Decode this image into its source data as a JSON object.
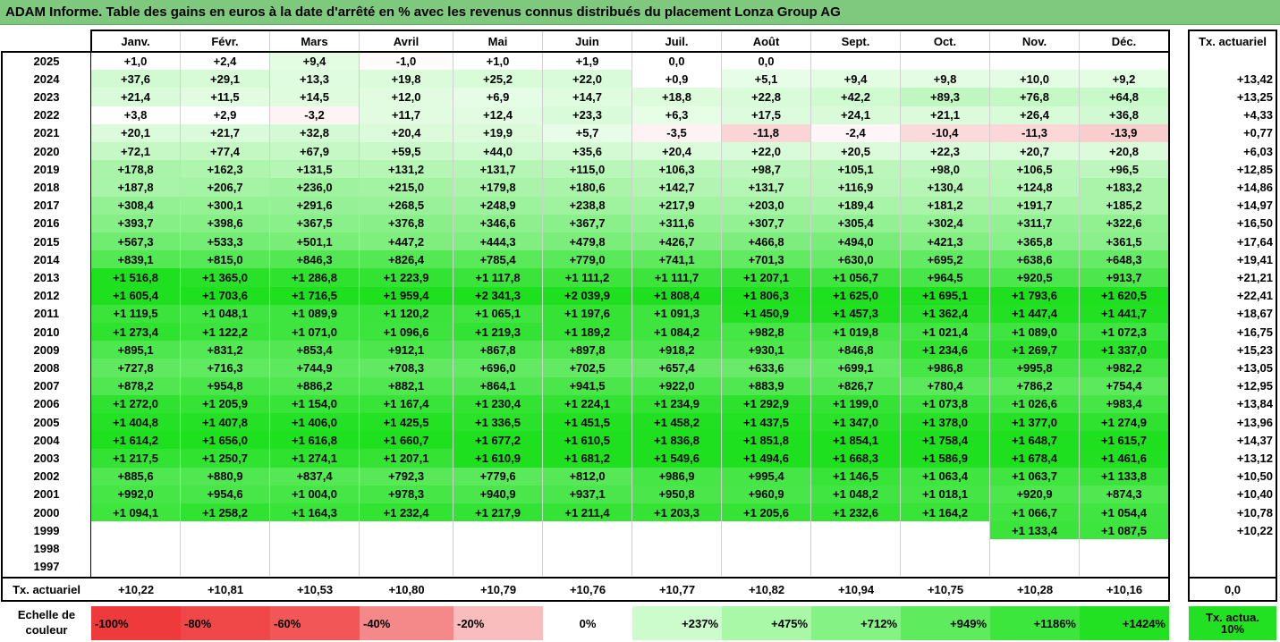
{
  "title": "ADAM Informe. Table des gains en euros à la date d'arrêté en % avec les revenus connus distribués du placement Lonza Group AG",
  "chart_data": {
    "type": "table",
    "columns": [
      "Janv.",
      "Févr.",
      "Mars",
      "Avril",
      "Mai",
      "Juin",
      "Juil.",
      "Août",
      "Sept.",
      "Oct.",
      "Nov.",
      "Déc."
    ],
    "summary_header": "Tx. actuariel",
    "rows": [
      {
        "year": "2025",
        "values": [
          "+1,0",
          "+2,4",
          "+9,4",
          "-1,0",
          "+1,0",
          "+1,9",
          "0,0",
          "0,0",
          "",
          "",
          "",
          ""
        ],
        "tx": ""
      },
      {
        "year": "2024",
        "values": [
          "+37,6",
          "+29,1",
          "+13,3",
          "+19,8",
          "+25,2",
          "+22,0",
          "+0,9",
          "+5,1",
          "+9,4",
          "+9,8",
          "+10,0",
          "+9,2"
        ],
        "tx": "+13,42"
      },
      {
        "year": "2023",
        "values": [
          "+21,4",
          "+11,5",
          "+14,5",
          "+12,0",
          "+6,9",
          "+14,7",
          "+18,8",
          "+22,8",
          "+42,2",
          "+89,3",
          "+76,8",
          "+64,8"
        ],
        "tx": "+13,25"
      },
      {
        "year": "2022",
        "values": [
          "+3,8",
          "+2,9",
          "-3,2",
          "+11,7",
          "+12,4",
          "+23,3",
          "+6,3",
          "+17,5",
          "+24,1",
          "+21,1",
          "+26,4",
          "+36,8"
        ],
        "tx": "+4,33"
      },
      {
        "year": "2021",
        "values": [
          "+20,1",
          "+21,7",
          "+32,8",
          "+20,4",
          "+19,9",
          "+5,7",
          "-3,5",
          "-11,8",
          "-2,4",
          "-10,4",
          "-11,3",
          "-13,9"
        ],
        "tx": "+0,77"
      },
      {
        "year": "2020",
        "values": [
          "+72,1",
          "+77,4",
          "+67,9",
          "+59,5",
          "+44,0",
          "+35,6",
          "+20,4",
          "+22,0",
          "+20,5",
          "+22,3",
          "+20,7",
          "+20,8"
        ],
        "tx": "+6,03"
      },
      {
        "year": "2019",
        "values": [
          "+178,8",
          "+162,3",
          "+131,5",
          "+131,2",
          "+131,7",
          "+115,0",
          "+106,3",
          "+98,7",
          "+105,1",
          "+98,0",
          "+106,5",
          "+96,5"
        ],
        "tx": "+12,85"
      },
      {
        "year": "2018",
        "values": [
          "+187,8",
          "+206,7",
          "+236,0",
          "+215,0",
          "+179,8",
          "+180,6",
          "+142,7",
          "+131,7",
          "+116,9",
          "+130,4",
          "+124,8",
          "+183,2"
        ],
        "tx": "+14,86"
      },
      {
        "year": "2017",
        "values": [
          "+308,4",
          "+300,1",
          "+291,6",
          "+268,5",
          "+248,9",
          "+238,8",
          "+217,9",
          "+203,0",
          "+189,4",
          "+181,2",
          "+191,7",
          "+185,2"
        ],
        "tx": "+14,97"
      },
      {
        "year": "2016",
        "values": [
          "+393,7",
          "+398,6",
          "+367,5",
          "+376,8",
          "+346,6",
          "+367,7",
          "+311,6",
          "+307,7",
          "+305,4",
          "+302,4",
          "+311,7",
          "+322,6"
        ],
        "tx": "+16,50"
      },
      {
        "year": "2015",
        "values": [
          "+567,3",
          "+533,3",
          "+501,1",
          "+447,2",
          "+444,3",
          "+479,8",
          "+426,7",
          "+466,8",
          "+494,0",
          "+421,3",
          "+365,8",
          "+361,5"
        ],
        "tx": "+17,64"
      },
      {
        "year": "2014",
        "values": [
          "+839,1",
          "+815,0",
          "+846,3",
          "+826,4",
          "+785,4",
          "+779,0",
          "+741,1",
          "+701,3",
          "+630,0",
          "+695,2",
          "+638,6",
          "+648,3"
        ],
        "tx": "+19,41"
      },
      {
        "year": "2013",
        "values": [
          "+1 516,8",
          "+1 365,0",
          "+1 286,8",
          "+1 223,9",
          "+1 117,8",
          "+1 111,2",
          "+1 111,7",
          "+1 207,1",
          "+1 056,7",
          "+964,5",
          "+920,5",
          "+913,7"
        ],
        "tx": "+21,21"
      },
      {
        "year": "2012",
        "values": [
          "+1 605,4",
          "+1 703,6",
          "+1 716,5",
          "+1 959,4",
          "+2 341,3",
          "+2 039,9",
          "+1 808,4",
          "+1 806,3",
          "+1 625,0",
          "+1 695,1",
          "+1 793,6",
          "+1 620,5"
        ],
        "tx": "+22,41"
      },
      {
        "year": "2011",
        "values": [
          "+1 119,5",
          "+1 048,1",
          "+1 089,9",
          "+1 120,2",
          "+1 065,1",
          "+1 197,6",
          "+1 091,3",
          "+1 450,9",
          "+1 457,3",
          "+1 362,4",
          "+1 447,4",
          "+1 441,7"
        ],
        "tx": "+18,67"
      },
      {
        "year": "2010",
        "values": [
          "+1 273,4",
          "+1 122,2",
          "+1 071,0",
          "+1 096,6",
          "+1 219,3",
          "+1 189,2",
          "+1 084,2",
          "+982,8",
          "+1 019,8",
          "+1 021,4",
          "+1 089,0",
          "+1 072,3"
        ],
        "tx": "+16,75"
      },
      {
        "year": "2009",
        "values": [
          "+895,1",
          "+831,2",
          "+853,4",
          "+912,1",
          "+867,8",
          "+897,8",
          "+918,2",
          "+930,1",
          "+846,8",
          "+1 234,6",
          "+1 269,7",
          "+1 337,0"
        ],
        "tx": "+15,23"
      },
      {
        "year": "2008",
        "values": [
          "+727,8",
          "+716,3",
          "+744,9",
          "+708,3",
          "+696,0",
          "+702,5",
          "+657,4",
          "+633,6",
          "+699,1",
          "+986,8",
          "+995,8",
          "+982,2"
        ],
        "tx": "+13,05"
      },
      {
        "year": "2007",
        "values": [
          "+878,2",
          "+954,8",
          "+886,2",
          "+882,1",
          "+864,1",
          "+941,5",
          "+922,0",
          "+883,9",
          "+826,7",
          "+780,4",
          "+786,2",
          "+754,4"
        ],
        "tx": "+12,95"
      },
      {
        "year": "2006",
        "values": [
          "+1 272,0",
          "+1 205,9",
          "+1 154,0",
          "+1 167,4",
          "+1 230,4",
          "+1 224,1",
          "+1 234,9",
          "+1 292,9",
          "+1 199,0",
          "+1 073,8",
          "+1 026,6",
          "+983,4"
        ],
        "tx": "+13,84"
      },
      {
        "year": "2005",
        "values": [
          "+1 404,8",
          "+1 407,8",
          "+1 406,0",
          "+1 425,5",
          "+1 336,5",
          "+1 451,5",
          "+1 458,2",
          "+1 437,5",
          "+1 347,0",
          "+1 378,0",
          "+1 377,0",
          "+1 274,9"
        ],
        "tx": "+13,96"
      },
      {
        "year": "2004",
        "values": [
          "+1 614,2",
          "+1 656,0",
          "+1 616,8",
          "+1 660,7",
          "+1 677,2",
          "+1 610,5",
          "+1 836,8",
          "+1 851,8",
          "+1 854,1",
          "+1 758,4",
          "+1 648,7",
          "+1 615,7"
        ],
        "tx": "+14,37"
      },
      {
        "year": "2003",
        "values": [
          "+1 217,5",
          "+1 250,7",
          "+1 274,1",
          "+1 207,1",
          "+1 610,9",
          "+1 681,2",
          "+1 549,6",
          "+1 494,6",
          "+1 668,3",
          "+1 586,9",
          "+1 678,4",
          "+1 461,6"
        ],
        "tx": "+13,12"
      },
      {
        "year": "2002",
        "values": [
          "+885,6",
          "+880,9",
          "+837,4",
          "+792,3",
          "+779,6",
          "+812,0",
          "+986,9",
          "+995,4",
          "+1 146,5",
          "+1 063,4",
          "+1 063,7",
          "+1 133,8"
        ],
        "tx": "+10,50"
      },
      {
        "year": "2001",
        "values": [
          "+992,0",
          "+954,6",
          "+1 004,0",
          "+978,3",
          "+940,9",
          "+937,1",
          "+950,8",
          "+960,9",
          "+1 048,2",
          "+1 018,1",
          "+920,9",
          "+874,3"
        ],
        "tx": "+10,40"
      },
      {
        "year": "2000",
        "values": [
          "+1 094,1",
          "+1 258,2",
          "+1 164,3",
          "+1 232,4",
          "+1 217,9",
          "+1 211,4",
          "+1 203,3",
          "+1 205,6",
          "+1 232,6",
          "+1 164,2",
          "+1 066,7",
          "+1 054,4"
        ],
        "tx": "+10,78"
      },
      {
        "year": "1999",
        "values": [
          "",
          "",
          "",
          "",
          "",
          "",
          "",
          "",
          "",
          "",
          "+1 133,4",
          "+1 087,5"
        ],
        "tx": "+10,22"
      },
      {
        "year": "1998",
        "values": [
          "",
          "",
          "",
          "",
          "",
          "",
          "",
          "",
          "",
          "",
          "",
          ""
        ],
        "tx": ""
      },
      {
        "year": "1997",
        "values": [
          "",
          "",
          "",
          "",
          "",
          "",
          "",
          "",
          "",
          "",
          "",
          ""
        ],
        "tx": ""
      }
    ],
    "footer": {
      "label": "Tx. actuariel",
      "values": [
        "+10,22",
        "+10,81",
        "+10,53",
        "+10,80",
        "+10,79",
        "+10,76",
        "+10,77",
        "+10,82",
        "+10,94",
        "+10,75",
        "+10,28",
        "+10,16"
      ],
      "tx": "0,0"
    },
    "color_scale": {
      "label": "Echelle de couleur",
      "stops": [
        {
          "label": "-100%",
          "color": "#ee3a3a"
        },
        {
          "label": "-80%",
          "color": "#f04848"
        },
        {
          "label": "-60%",
          "color": "#f25656"
        },
        {
          "label": "-40%",
          "color": "#f58888"
        },
        {
          "label": "-20%",
          "color": "#f9bdbd"
        },
        {
          "label": "0%",
          "color": "#ffffff"
        },
        {
          "label": "+237%",
          "color": "#ccfccc"
        },
        {
          "label": "+475%",
          "color": "#a8f8a8"
        },
        {
          "label": "+712%",
          "color": "#85f285"
        },
        {
          "label": "+949%",
          "color": "#5eec5e"
        },
        {
          "label": "+1186%",
          "color": "#3de63d"
        },
        {
          "label": "+1424%",
          "color": "#22e022"
        }
      ],
      "tx_label": "Tx. actua. 10%",
      "tx_color": "#22e022"
    }
  }
}
